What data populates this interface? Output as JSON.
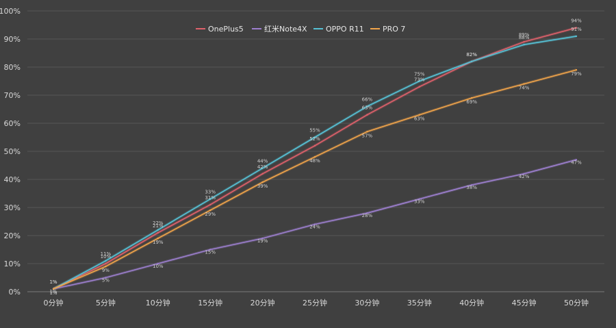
{
  "chart_data": {
    "type": "line",
    "title": "",
    "xlabel": "",
    "ylabel": "",
    "categories": [
      "0分钟",
      "5分钟",
      "10分钟",
      "15分钟",
      "20分钟",
      "25分钟",
      "30分钟",
      "35分钟",
      "40分钟",
      "45分钟",
      "50分钟"
    ],
    "y_ticks": [
      "0%",
      "10%",
      "20%",
      "30%",
      "40%",
      "50%",
      "60%",
      "70%",
      "80%",
      "90%",
      "100%"
    ],
    "ylim": [
      0,
      100
    ],
    "grid": true,
    "legend_position": "top-center",
    "series": [
      {
        "name": "OnePlus5",
        "color": "#e0616b",
        "values": [
          1,
          10,
          21,
          31,
          42,
          52,
          63,
          73,
          82,
          89,
          94
        ],
        "labels": [
          "1%",
          "10%",
          "21%",
          "31%",
          "42%",
          "52%",
          "63%",
          "73%",
          "82%",
          "89%",
          "94%"
        ]
      },
      {
        "name": "红米Note4X",
        "color": "#9d7fcf",
        "values": [
          1,
          5,
          10,
          15,
          19,
          24,
          28,
          33,
          38,
          42,
          47
        ],
        "labels": [
          "1%",
          "5%",
          "10%",
          "15%",
          "19%",
          "24%",
          "28%",
          "33%",
          "38%",
          "42%",
          "47%"
        ]
      },
      {
        "name": "OPPO R11",
        "color": "#56c2d6",
        "values": [
          1,
          11,
          22,
          33,
          44,
          55,
          66,
          75,
          82,
          88,
          91
        ],
        "labels": [
          "1%",
          "11%",
          "22%",
          "33%",
          "44%",
          "55%",
          "66%",
          "75%",
          "82%",
          "88%",
          "91%"
        ]
      },
      {
        "name": "PRO 7",
        "color": "#f2a54a",
        "values": [
          1,
          9,
          19,
          29,
          39,
          48,
          57,
          63,
          69,
          74,
          79
        ],
        "labels": [
          "1%",
          "9%",
          "19%",
          "29%",
          "39%",
          "48%",
          "57%",
          "63%",
          "69%",
          "74%",
          "79%"
        ]
      }
    ]
  }
}
